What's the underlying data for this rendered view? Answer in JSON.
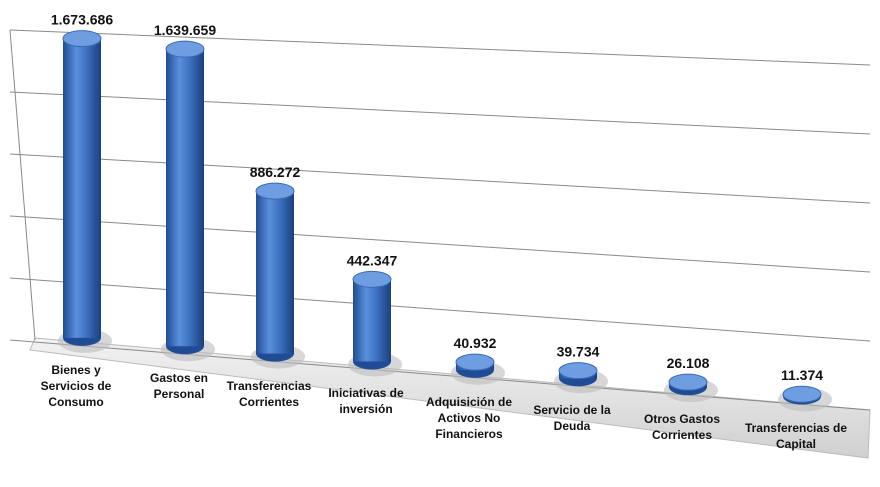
{
  "chart_data": {
    "type": "bar3d",
    "categories": [
      "Bienes y Servicios de Consumo",
      "Gastos en Personal",
      "Transferencias Corrientes",
      "Iniciativas de inversión",
      "Adquisición de Activos No Financieros",
      "Servicio de la Deuda",
      "Otros Gastos Corrientes",
      "Transferencias de Capital"
    ],
    "values": [
      1673686,
      1639659,
      886272,
      442347,
      40932,
      39734,
      26108,
      11374
    ],
    "value_labels": [
      "1.673.686",
      "1.639.659",
      "886.272",
      "442.347",
      "40.932",
      "39.734",
      "26.108",
      "11.374"
    ],
    "color": "#3f74c4",
    "ylim": [
      0,
      1750000
    ],
    "yticks": [
      0,
      350000,
      700000,
      1050000,
      1400000,
      1750000
    ],
    "grid": true
  }
}
